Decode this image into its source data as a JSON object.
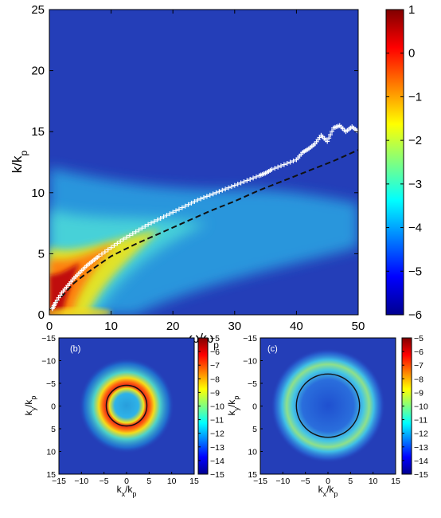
{
  "chart_data": [
    {
      "type": "heatmap",
      "xlabel": "ω/ω",
      "xlabel_sub": "p",
      "ylabel": "k/k",
      "ylabel_sub": "p",
      "xlim": [
        0,
        50
      ],
      "ylim": [
        0,
        25
      ],
      "xticks": [
        0,
        10,
        20,
        30,
        40,
        50
      ],
      "yticks": [
        0,
        5,
        10,
        15,
        20,
        25
      ],
      "colorbar": {
        "range": [
          -6,
          1
        ],
        "ticks": [
          1,
          0,
          -1,
          -2,
          -3,
          -4,
          -5,
          -6
        ]
      },
      "ridge_markers": {
        "x": [
          0.5,
          1,
          2,
          3,
          4,
          5,
          6,
          7,
          8,
          10,
          12,
          14,
          16,
          18,
          20,
          22,
          24,
          26,
          28,
          30,
          32,
          34,
          35,
          36,
          38,
          40,
          41,
          42,
          43,
          44,
          45,
          46,
          47,
          48,
          49,
          50
        ],
        "y": [
          0.5,
          1.0,
          1.8,
          2.4,
          3.0,
          3.5,
          4.0,
          4.4,
          4.8,
          5.5,
          6.2,
          6.8,
          7.4,
          7.9,
          8.4,
          8.9,
          9.4,
          9.8,
          10.2,
          10.6,
          11.0,
          11.4,
          11.6,
          11.9,
          12.3,
          12.7,
          13.3,
          13.6,
          14.0,
          14.7,
          14.2,
          15.3,
          15.5,
          15.0,
          15.4,
          15.0
        ]
      },
      "dispersion_curve": {
        "x": [
          0,
          2,
          4,
          6,
          8,
          10,
          14,
          18,
          22,
          26,
          30,
          34,
          38,
          42,
          46,
          50
        ],
        "y": [
          0.4,
          1.5,
          2.6,
          3.4,
          4.1,
          4.8,
          5.8,
          6.7,
          7.6,
          8.5,
          9.3,
          10.2,
          11.0,
          11.8,
          12.6,
          13.5
        ]
      }
    },
    {
      "type": "heatmap",
      "panel_label": "(b)",
      "xlabel": "k",
      "xlabel_sub": "x",
      "xlabel_tail": "/k",
      "xlabel_tail_sub": "p",
      "ylabel": "k",
      "ylabel_sub": "y",
      "ylabel_tail": "/k",
      "ylabel_tail_sub": "p",
      "xlim": [
        -15,
        15
      ],
      "ylim": [
        -15,
        15
      ],
      "xticks": [
        -15,
        -10,
        -5,
        0,
        5,
        10,
        15
      ],
      "yticks": [
        -15,
        -10,
        -5,
        0,
        5,
        10,
        15
      ],
      "colorbar": {
        "range": [
          -15,
          -5
        ],
        "ticks": [
          -5,
          -6,
          -7,
          -8,
          -9,
          -10,
          -11,
          -12,
          -13,
          -14,
          -15
        ]
      },
      "ring_radius": 4.5
    },
    {
      "type": "heatmap",
      "panel_label": "(c)",
      "xlabel": "k",
      "xlabel_sub": "x",
      "xlabel_tail": "/k",
      "xlabel_tail_sub": "p",
      "ylabel": "k",
      "ylabel_sub": "y",
      "ylabel_tail": "/k",
      "ylabel_tail_sub": "p",
      "xlim": [
        -15,
        15
      ],
      "ylim": [
        -15,
        15
      ],
      "xticks": [
        -15,
        -10,
        -5,
        0,
        5,
        10,
        15
      ],
      "yticks": [
        -15,
        -10,
        -5,
        0,
        5,
        10,
        15
      ],
      "colorbar": {
        "range": [
          -15,
          -5
        ],
        "ticks": [
          -5,
          -6,
          -7,
          -8,
          -9,
          -10,
          -11,
          -12,
          -13,
          -14,
          -15
        ]
      },
      "ring_radius": 7
    }
  ]
}
